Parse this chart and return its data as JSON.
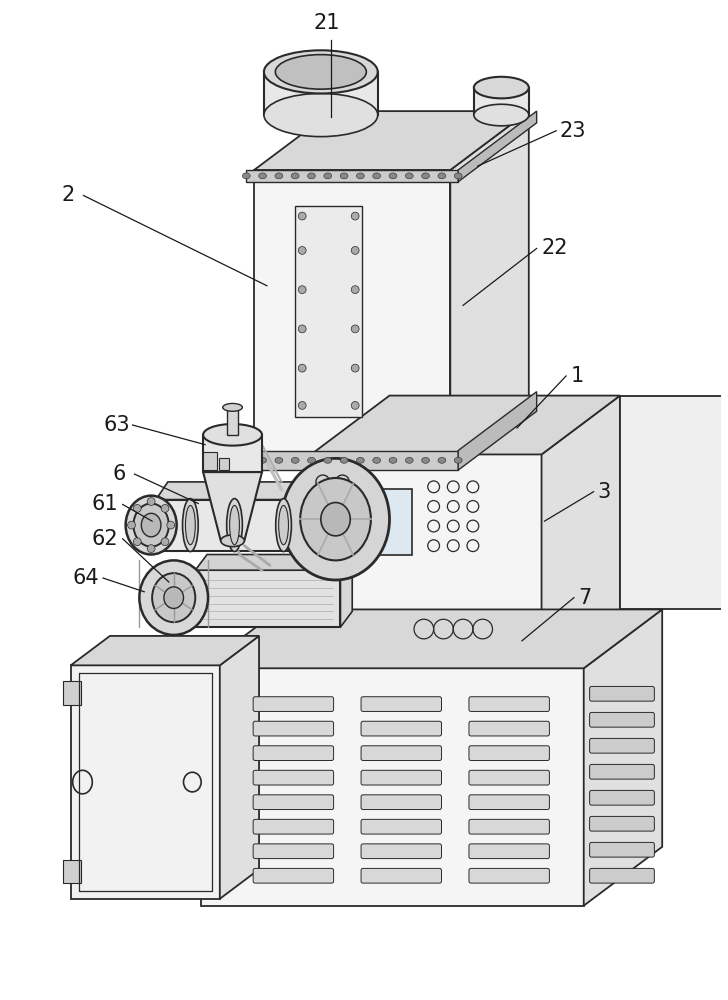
{
  "bg_color": "#ffffff",
  "lc": "#2a2a2a",
  "lw": 1.3,
  "fig_w": 7.28,
  "fig_h": 10.0,
  "label_fs": 15,
  "label_color": "#1a1a1a",
  "face_front": "#f5f5f5",
  "face_right": "#e0e0e0",
  "face_top": "#d8d8d8",
  "face_dark": "#c8c8c8"
}
